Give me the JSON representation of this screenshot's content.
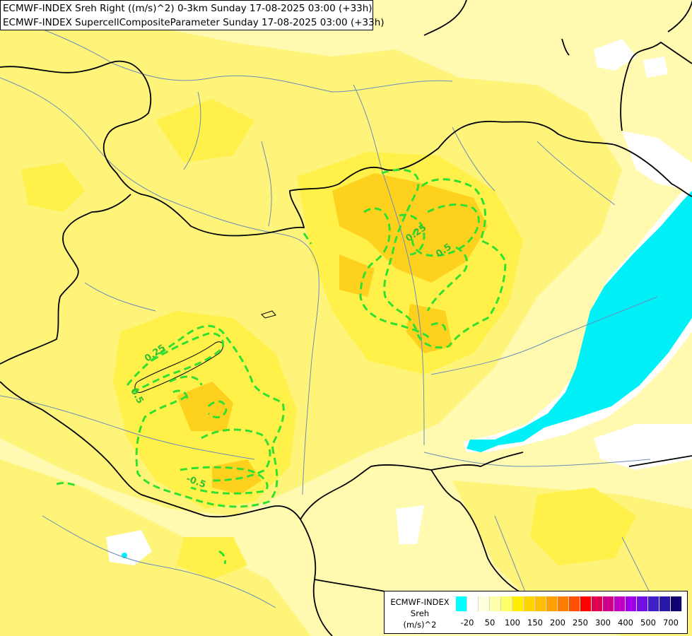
{
  "title": {
    "line1": "ECMWF-INDEX Sreh Right ((m/s)^2) 0-3km Sunday 17-08-2025 03:00 (+33h)",
    "line2": "ECMWF-INDEX SupercellCompositeParameter Sunday 17-08-2025 03:00 (+33h)"
  },
  "contour_labels": {
    "a": "0.25",
    "b": "0.5",
    "c": "0.25",
    "d": "0.5",
    "e": "-0.5"
  },
  "legend": {
    "line1": "ECMWF-INDEX",
    "line2": "Sreh",
    "line3": "(m/s)^2",
    "colors": [
      "#00ffff",
      "#ffffff",
      "#ffffdd",
      "#ffffaa",
      "#ffff66",
      "#ffee00",
      "#ffd500",
      "#ffbe00",
      "#ffa000",
      "#ff7e00",
      "#ff5000",
      "#ff0000",
      "#e00050",
      "#d0008a",
      "#c000c4",
      "#a000e8",
      "#7010e0",
      "#4020c8",
      "#2818a8",
      "#100070"
    ],
    "ticks": [
      "-20",
      "50",
      "100",
      "150",
      "200",
      "250",
      "300",
      "400",
      "500",
      "700"
    ]
  },
  "colors": {
    "background": "#fffab0",
    "yellow": "#fff04a",
    "orange": "#ffd11f",
    "negative": "#00f0f8",
    "contour": "#30e030",
    "border": "#000000",
    "river": "#6a8cb8"
  }
}
